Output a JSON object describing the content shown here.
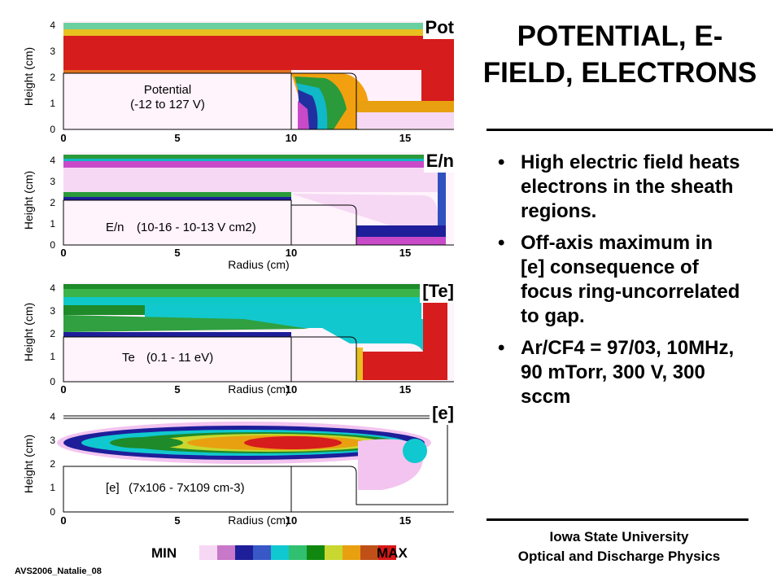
{
  "panels": [
    {
      "label": "Pot",
      "name": "Potential",
      "range": "(-12 to 127 V)"
    },
    {
      "label": "E/n",
      "name": "E/n",
      "range": "(10-16 - 10-13 V cm2)"
    },
    {
      "label": "[Te]",
      "name": "Te",
      "range": "(0.1 - 11 eV)"
    },
    {
      "label": "[e]",
      "name": "[e]",
      "range": "(7x106 - 7x109 cm-3)"
    }
  ],
  "axes": {
    "xlabel": "Radius (cm)",
    "ylabel": "Height (cm)",
    "xticks": [
      "0",
      "5",
      "10",
      "15"
    ],
    "yticks": [
      "0",
      "1",
      "2",
      "3",
      "4"
    ]
  },
  "title": "POTENTIAL, E-FIELD, ELECTRONS",
  "bullets": [
    "High electric field heats electrons in the sheath regions.",
    "Off-axis maximum in [e] consequence of focus ring-uncorrelated to gap.",
    "Ar/CF4 = 97/03, 10MHz, 90 mTorr, 300 V, 300 sccm"
  ],
  "institution": {
    "line1": "Iowa State University",
    "line2": "Optical and Discharge Physics"
  },
  "colorbar": {
    "min_label": "MIN",
    "max_label": "MAX",
    "colors": [
      "#f6d8f4",
      "#c878c8",
      "#1e1e9a",
      "#3858c8",
      "#10c8d0",
      "#30c070",
      "#108810",
      "#c8d830",
      "#e8a010",
      "#c05018",
      "#d81818"
    ]
  },
  "footer": "AVS2006_Natalie_08"
}
